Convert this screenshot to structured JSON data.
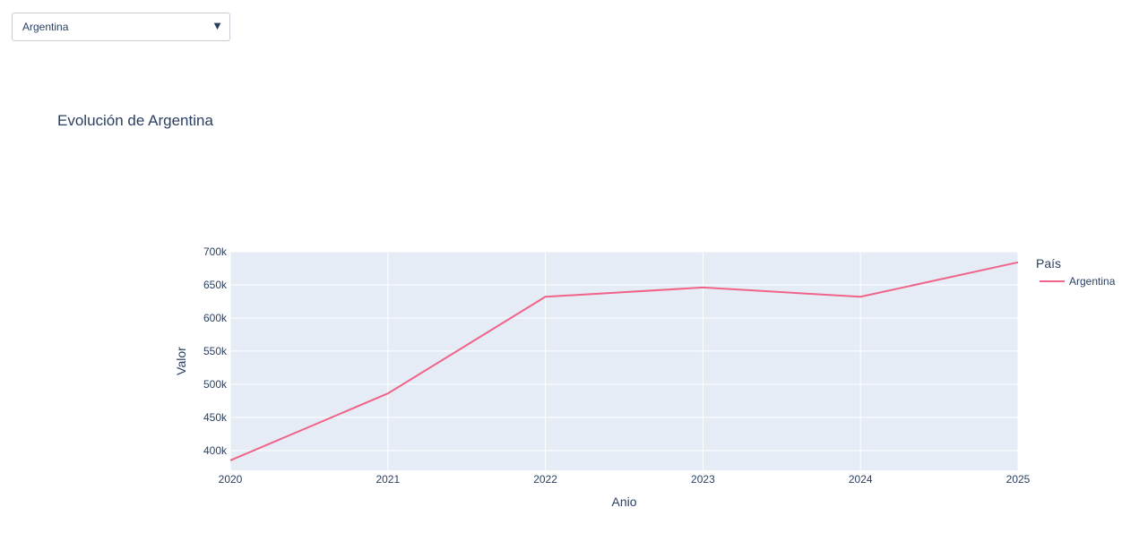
{
  "dropdown": {
    "selected": "Argentina",
    "arrow_icon": "caret-down-icon"
  },
  "chart_data": {
    "type": "line",
    "title": "Evolución de Argentina",
    "xlabel": "Anio",
    "ylabel": "Valor",
    "x": [
      2020,
      2021,
      2022,
      2023,
      2024,
      2025
    ],
    "xlim": [
      2020,
      2025
    ],
    "ylim": [
      370000,
      700000
    ],
    "yticks": [
      400000,
      450000,
      500000,
      550000,
      600000,
      650000,
      700000
    ],
    "ytick_labels": [
      "400k",
      "450k",
      "500k",
      "550k",
      "600k",
      "650k",
      "700k"
    ],
    "xtick_labels": [
      "2020",
      "2021",
      "2022",
      "2023",
      "2024",
      "2025"
    ],
    "grid": true,
    "legend": {
      "title": "País",
      "placement": "right"
    },
    "series": [
      {
        "name": "Argentina",
        "color": "#f0648a",
        "values": [
          385000,
          486000,
          632000,
          646000,
          632000,
          684000
        ]
      }
    ],
    "colors": {
      "plot_bg": "#e5ecf6",
      "grid": "#ffffff",
      "text": "#2a3f5f"
    }
  }
}
